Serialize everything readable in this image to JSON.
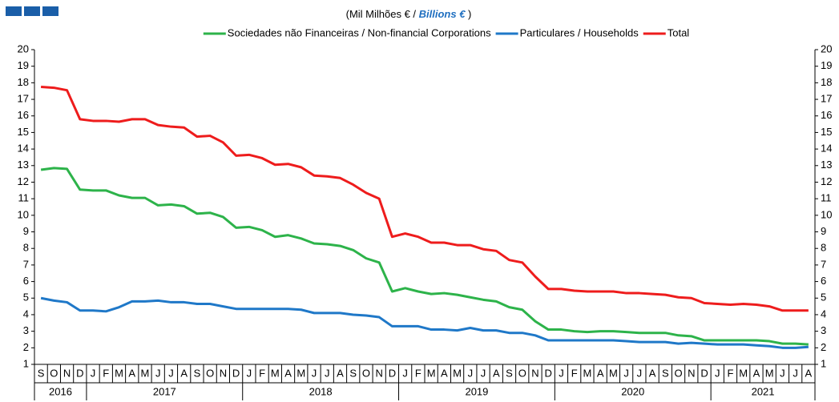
{
  "chart_data": {
    "type": "line",
    "title": "(Mil Milhões € / ",
    "title_em": "Billions  €",
    "title_end": " )",
    "categories": [
      "S",
      "O",
      "N",
      "D",
      "J",
      "F",
      "M",
      "A",
      "M",
      "J",
      "J",
      "A",
      "S",
      "O",
      "N",
      "D",
      "J",
      "F",
      "M",
      "A",
      "M",
      "J",
      "J",
      "A",
      "S",
      "O",
      "N",
      "D",
      "J",
      "F",
      "M",
      "A",
      "M",
      "J",
      "J",
      "A",
      "S",
      "O",
      "N",
      "D",
      "J",
      "F",
      "M",
      "A",
      "M",
      "J",
      "J",
      "A",
      "S",
      "O",
      "N",
      "D",
      "J",
      "F",
      "M",
      "A",
      "M",
      "J",
      "J",
      "A"
    ],
    "year_groups": [
      {
        "label": "2016",
        "span": 4
      },
      {
        "label": "2017",
        "span": 12
      },
      {
        "label": "2018",
        "span": 12
      },
      {
        "label": "2019",
        "span": 12
      },
      {
        "label": "2020",
        "span": 12
      },
      {
        "label": "2021",
        "span": 8
      }
    ],
    "series": [
      {
        "name": "Sociedades não Financeiras / Non-financial Corporations",
        "color": "#2db34a",
        "values": [
          12.75,
          12.85,
          12.8,
          11.55,
          11.5,
          11.5,
          11.2,
          11.05,
          11.05,
          10.6,
          10.65,
          10.55,
          10.1,
          10.15,
          9.9,
          9.25,
          9.3,
          9.1,
          8.7,
          8.8,
          8.6,
          8.3,
          8.25,
          8.15,
          7.9,
          7.4,
          7.15,
          5.4,
          5.6,
          5.4,
          5.25,
          5.3,
          5.2,
          5.05,
          4.9,
          4.8,
          4.45,
          4.3,
          3.6,
          3.1,
          3.1,
          3.0,
          2.95,
          3.0,
          3.0,
          2.95,
          2.9,
          2.9,
          2.9,
          2.75,
          2.7,
          2.45,
          2.45,
          2.45,
          2.45,
          2.45,
          2.4,
          2.25,
          2.25,
          2.2
        ]
      },
      {
        "name": "Particulares / Households",
        "color": "#1f78c8",
        "values": [
          5.0,
          4.85,
          4.75,
          4.25,
          4.25,
          4.2,
          4.45,
          4.8,
          4.8,
          4.85,
          4.75,
          4.75,
          4.65,
          4.65,
          4.5,
          4.35,
          4.35,
          4.35,
          4.35,
          4.35,
          4.3,
          4.1,
          4.1,
          4.1,
          4.0,
          3.95,
          3.85,
          3.3,
          3.3,
          3.3,
          3.1,
          3.1,
          3.05,
          3.2,
          3.05,
          3.05,
          2.9,
          2.9,
          2.75,
          2.45,
          2.45,
          2.45,
          2.45,
          2.45,
          2.45,
          2.4,
          2.35,
          2.35,
          2.35,
          2.25,
          2.3,
          2.25,
          2.2,
          2.2,
          2.2,
          2.15,
          2.1,
          2.0,
          2.0,
          2.05
        ]
      },
      {
        "name": "Total",
        "color": "#ee1c1c",
        "values": [
          17.75,
          17.7,
          17.55,
          15.8,
          15.7,
          15.7,
          15.65,
          15.8,
          15.8,
          15.45,
          15.35,
          15.3,
          14.75,
          14.8,
          14.4,
          13.6,
          13.65,
          13.45,
          13.05,
          13.1,
          12.9,
          12.4,
          12.35,
          12.25,
          11.85,
          11.35,
          11.0,
          8.7,
          8.9,
          8.7,
          8.35,
          8.35,
          8.2,
          8.2,
          7.95,
          7.85,
          7.3,
          7.15,
          6.3,
          5.55,
          5.55,
          5.45,
          5.4,
          5.4,
          5.4,
          5.3,
          5.3,
          5.25,
          5.2,
          5.05,
          5.0,
          4.7,
          4.65,
          4.6,
          4.65,
          4.6,
          4.5,
          4.25,
          4.25,
          4.25
        ]
      }
    ],
    "ylim": [
      1,
      20
    ],
    "yticks": [
      1,
      2,
      3,
      4,
      5,
      6,
      7,
      8,
      9,
      10,
      11,
      12,
      13,
      14,
      15,
      16,
      17,
      18,
      19,
      20
    ],
    "y2lim": [
      1,
      20
    ],
    "y2ticks": [
      1,
      2,
      3,
      4,
      5,
      6,
      7,
      8,
      9,
      10,
      11,
      12,
      13,
      14,
      15,
      16,
      17,
      18,
      19,
      20
    ],
    "grid": false,
    "legend": "top"
  }
}
